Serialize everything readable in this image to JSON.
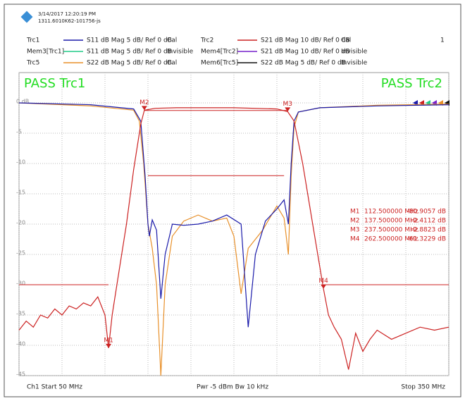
{
  "header": {
    "date": "3/14/2017 12:20:19 PM",
    "device": "1311.6010K62-101756-js",
    "channel_no": "1"
  },
  "footer": {
    "start": "Ch1  Start  50 MHz",
    "power": "Pwr  -5 dBm  Bw  10 kHz",
    "stop": "Stop  350 MHz"
  },
  "chart_data": {
    "type": "line",
    "xlim": [
      50,
      350
    ],
    "xticks": [
      50,
      80,
      110,
      140,
      170,
      200,
      230,
      260,
      290,
      320,
      350
    ],
    "ylim": [
      -45,
      5
    ],
    "yticks": [
      {
        "value": 0,
        "label": "0 dB"
      },
      -5,
      -10,
      -15,
      -20,
      -25,
      -30,
      -35,
      -40,
      -45
    ],
    "y2lim": [
      -90,
      10
    ],
    "grid": true,
    "pass_labels": [
      {
        "text": "PASS  Trc1",
        "color": "#22dd22"
      },
      {
        "text": "PASS  Trc2",
        "color": "#22dd22"
      }
    ],
    "series": [
      {
        "name": "Trc1",
        "color": "#1a1aaa",
        "desc": "S11  dB Mag  5 dB/ Ref 0 dB",
        "status": "Cal",
        "x": [
          50,
          100,
          130,
          135,
          138,
          140,
          141,
          143,
          146,
          149,
          152,
          157,
          165,
          175,
          185,
          195,
          205,
          210,
          215,
          222,
          230,
          235,
          238,
          240,
          242,
          245,
          260,
          300,
          350
        ],
        "values": [
          0,
          -0.3,
          -1,
          -3,
          -12,
          -20,
          -22,
          -19.3,
          -21,
          -32.3,
          -25,
          -20,
          -20.2,
          -20,
          -19.5,
          -18.5,
          -20,
          -37,
          -25,
          -19.5,
          -17.5,
          -16,
          -20,
          -10,
          -3,
          -1.5,
          -0.8,
          -0.5,
          -0.3
        ]
      },
      {
        "name": "Trc2",
        "color": "#cc2222",
        "desc": "S21  dB Mag  10 dB/ Ref 0 dB",
        "status": "Cal",
        "axis": "y2",
        "x": [
          50,
          55,
          60,
          65,
          70,
          75,
          80,
          85,
          90,
          95,
          100,
          105,
          110,
          112.5,
          115,
          120,
          125,
          130,
          135,
          137.5,
          145,
          160,
          200,
          230,
          237.5,
          242,
          248,
          255,
          262.5,
          266,
          270,
          275,
          280,
          285,
          290,
          295,
          300,
          310,
          320,
          330,
          340,
          350
        ],
        "values": [
          -75,
          -72,
          -74,
          -70,
          -71,
          -68,
          -70,
          -67,
          -68,
          -66,
          -67,
          -64,
          -70,
          -80.9057,
          -70,
          -55,
          -40,
          -22,
          -7,
          -2.4112,
          -1.8,
          -1.6,
          -1.6,
          -2,
          -2.8823,
          -6,
          -20,
          -40,
          -61.3229,
          -70,
          -74,
          -78,
          -88,
          -76,
          -82,
          -78,
          -75,
          -78,
          -76,
          -74,
          -75,
          -74
        ]
      },
      {
        "name": "Mem3[Trc1]",
        "color": "#22cc88",
        "desc": "S11  dB Mag  5 dB/ Ref 0 dB",
        "status": "Invisible"
      },
      {
        "name": "Mem4[Trc2]",
        "color": "#7722cc",
        "desc": "S21  dB Mag  10 dB/ Ref 0 dB",
        "status": "Invisible"
      },
      {
        "name": "Trc5",
        "color": "#e8902a",
        "desc": "S22  dB Mag  5 dB/ Ref 0 dB",
        "status": "Cal",
        "x": [
          50,
          100,
          130,
          134,
          137,
          140,
          143,
          146,
          149,
          152,
          157,
          165,
          175,
          185,
          195,
          200,
          205,
          210,
          220,
          230,
          235,
          238,
          240,
          242,
          245,
          260,
          300,
          350
        ],
        "values": [
          0,
          -0.5,
          -1.2,
          -3,
          -10,
          -20,
          -24,
          -30,
          -45,
          -30,
          -22,
          -19.5,
          -18.5,
          -19.5,
          -19,
          -22,
          -31.5,
          -24,
          -21,
          -17,
          -19,
          -25,
          -12,
          -4,
          -1.5,
          -0.8,
          -0.4,
          -0.2
        ]
      },
      {
        "name": "Mem6[Trc5]",
        "color": "#111111",
        "desc": "S22  dB Mag  5 dB/ Ref 0 dB",
        "status": "Invisible"
      }
    ],
    "limit_lines": [
      {
        "x": [
          50,
          112.5
        ],
        "y": -60
      },
      {
        "x": [
          262.5,
          350
        ],
        "y": -60
      },
      {
        "x": [
          137.5,
          237.5
        ],
        "y": -2.5
      },
      {
        "x": [
          140,
          235
        ],
        "y": -24
      }
    ],
    "markers": [
      {
        "name": "M1",
        "x": 112.5,
        "value": -80.9057,
        "freq_label": "112.500000 MHz",
        "value_label": "-80.9057  dB"
      },
      {
        "name": "M2",
        "x": 137.5,
        "value": -2.4112,
        "freq_label": "137.500000 MHz",
        "value_label": "-2.4112  dB"
      },
      {
        "name": "M3",
        "x": 237.5,
        "value": -2.8823,
        "freq_label": "237.500000 MHz",
        "value_label": "-2.8823  dB"
      },
      {
        "name": "M4",
        "x": 262.5,
        "value": -61.3229,
        "freq_label": "262.500000 MHz",
        "value_label": "-61.3229  dB"
      }
    ]
  }
}
